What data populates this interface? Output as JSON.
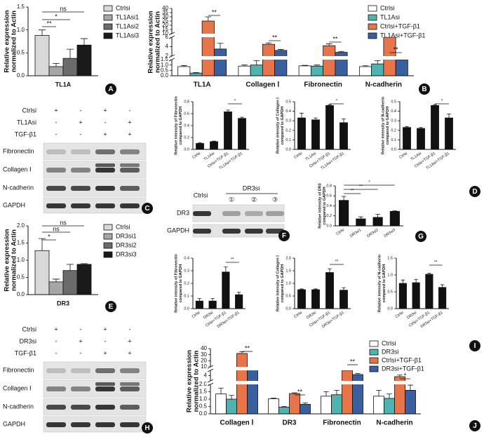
{
  "chart_data": [
    {
      "type": "bar",
      "panel": "A",
      "ylabel": [
        "Relative expression",
        "normalized to Actin"
      ],
      "categories": [
        "TL1A"
      ],
      "legend": true,
      "series": [
        {
          "name": "Ctrlsi",
          "color": "#d9d9d9",
          "values": [
            0.88
          ],
          "errors": [
            0.12
          ]
        },
        {
          "name": "TL1Asi1",
          "color": "#a6a6a6",
          "values": [
            0.2
          ],
          "errors": [
            0.07
          ]
        },
        {
          "name": "TL1Asi2",
          "color": "#6b6b6b",
          "values": [
            0.38
          ],
          "errors": [
            0.2
          ]
        },
        {
          "name": "TL1Asi3",
          "color": "#1a1a1a",
          "values": [
            0.67
          ],
          "errors": [
            0.14
          ]
        }
      ],
      "ylim": [
        0,
        1.5
      ],
      "yticks": [
        {
          "value": 0,
          "label": "0.0"
        },
        0.5,
        {
          "value": 1,
          "label": "1.0"
        },
        1.5
      ],
      "annotations": [
        "**",
        "*",
        "ns"
      ]
    },
    {
      "type": "bar",
      "panel": "B",
      "ylabel": [
        "Relative expression",
        "normalized to Actin"
      ],
      "categories": [
        "TL1A",
        "Collagen Ⅰ",
        "Fibronectin",
        "N-cadherin"
      ],
      "legend": true,
      "series": [
        {
          "name": "Ctrlsi",
          "color": "#ffffff",
          "values": [
            0.85,
            0.9,
            0.92,
            0.85
          ],
          "errors": [
            0.1,
            0.1,
            0.05,
            0.08
          ]
        },
        {
          "name": "TL1Asi",
          "color": "#4fb3b0",
          "values": [
            0.25,
            1.0,
            0.9,
            1.1
          ],
          "errors": [
            0.05,
            0.4,
            0.1,
            0.3
          ]
        },
        {
          "name": "Ctrlsi+TGF-β1",
          "color": "#e8744a",
          "values": [
            25,
            4.5,
            4.2,
            6
          ],
          "errors": [
            5,
            0.3,
            0.4,
            0.5
          ]
        },
        {
          "name": "TL1Asi+TGF-β1",
          "color": "#3a5f9e",
          "values": [
            3.5,
            3.2,
            2.8,
            1.5
          ],
          "errors": [
            1.2,
            0.2,
            0.2,
            0.15
          ]
        }
      ],
      "ylim": [
        0,
        40
      ],
      "y_breaks": [
        [
          1.5,
          2
        ],
        [
          6,
          10
        ]
      ],
      "yticks": [
        {
          "value": 0,
          "label": "0.0"
        },
        0.5,
        {
          "value": 1,
          "label": "1.0"
        },
        1.5,
        2,
        4,
        6,
        10,
        15,
        20,
        25,
        30,
        35,
        40
      ],
      "annotations": [
        "**",
        "**",
        "**",
        "**"
      ]
    },
    {
      "type": "bar",
      "ylabel": [
        "Relative intensity of Fibronectin",
        "compared to GAPDH"
      ],
      "categories": [
        "Ctrlsi",
        "TL1Asi",
        "Ctrlsi+TGF-β1",
        "TL1Asi+TGF-β1"
      ],
      "color": "#111111",
      "values": [
        0.1,
        0.13,
        0.63,
        0.52
      ],
      "errors": [
        0.01,
        0.01,
        0.03,
        0.02
      ],
      "ylim": [
        0,
        0.8
      ],
      "yticks": [
        {
          "value": 0,
          "label": "0.0"
        },
        0.2,
        0.4,
        0.6,
        0.8
      ],
      "annotations": [
        "*"
      ]
    },
    {
      "type": "bar",
      "ylabel": [
        "Relative intensity of Collagen Ⅰ",
        "compared to GAPDH"
      ],
      "categories": [
        "Ctrlsi",
        "TL1Asi",
        "Ctrlsi+TGF-β1",
        "TL1Asi+TGF-β1"
      ],
      "color": "#111111",
      "values": [
        0.33,
        0.31,
        0.46,
        0.28
      ],
      "errors": [
        0.05,
        0.02,
        0.01,
        0.04
      ],
      "ylim": [
        0,
        0.5
      ],
      "yticks": [
        {
          "value": 0,
          "label": "0.0"
        },
        0.1,
        0.2,
        0.3,
        0.4,
        0.5
      ],
      "annotations": [
        "*"
      ]
    },
    {
      "type": "bar",
      "panel": "D",
      "ylabel": [
        "Relative intensity of N-cadherin",
        "compared to GAPDH"
      ],
      "categories": [
        "Ctrlsi",
        "TL1Asi",
        "Ctrlsi+TGF-β1",
        "TL1Asi+TGF-β1"
      ],
      "color": "#111111",
      "values": [
        0.23,
        0.22,
        0.46,
        0.33
      ],
      "errors": [
        0.01,
        0.01,
        0.01,
        0.04
      ],
      "ylim": [
        0,
        0.5
      ],
      "yticks": [
        {
          "value": 0,
          "label": "0.0"
        },
        0.1,
        0.2,
        0.3,
        0.4,
        0.5
      ],
      "annotations": [
        "*"
      ]
    },
    {
      "type": "bar",
      "panel": "G",
      "ylabel": [
        "Relative intensity of DR3",
        "compared to GAPDH"
      ],
      "categories": [
        "Ctrlsi",
        "DR3si1",
        "DR3si2",
        "DR3si3"
      ],
      "color": "#111111",
      "values": [
        0.51,
        0.14,
        0.17,
        0.29
      ],
      "errors": [
        0.08,
        0.04,
        0.06,
        0.01
      ],
      "ylim": [
        0,
        0.8
      ],
      "yticks": [
        {
          "value": 0,
          "label": "0.0"
        },
        0.2,
        0.4,
        0.6,
        0.8
      ],
      "annotations": [
        "**",
        "**",
        "*"
      ]
    },
    {
      "type": "bar",
      "panel": "E",
      "ylabel": [
        "Relative expression",
        "normalized to Actin"
      ],
      "categories": [
        "DR3"
      ],
      "legend": true,
      "series": [
        {
          "name": "Ctrlsi",
          "color": "#d9d9d9",
          "values": [
            1.28
          ],
          "errors": [
            0.35
          ]
        },
        {
          "name": "DR3si1",
          "color": "#a6a6a6",
          "values": [
            0.37
          ],
          "errors": [
            0.08
          ]
        },
        {
          "name": "DR3si2",
          "color": "#6b6b6b",
          "values": [
            0.7
          ],
          "errors": [
            0.18
          ]
        },
        {
          "name": "DR3si3",
          "color": "#1a1a1a",
          "values": [
            0.88
          ],
          "errors": [
            0.02
          ]
        }
      ],
      "ylim": [
        0,
        2
      ],
      "yticks": [
        {
          "value": 0,
          "label": "0.0"
        },
        0.5,
        {
          "value": 1,
          "label": "1.0"
        },
        1.5,
        {
          "value": 2,
          "label": "2.0"
        }
      ],
      "annotations": [
        "*",
        "ns",
        "ns"
      ]
    },
    {
      "type": "bar",
      "ylabel": [
        "Relative intensity of Fibronectin",
        "compared to GAPDH"
      ],
      "categories": [
        "Ctrlsi",
        "DR3si",
        "Ctrlsi+TGF-β1",
        "DR3si+TGF-β1"
      ],
      "color": "#111111",
      "values": [
        0.06,
        0.06,
        0.29,
        0.11
      ],
      "errors": [
        0.02,
        0.02,
        0.04,
        0.02
      ],
      "ylim": [
        0,
        0.4
      ],
      "yticks": [
        {
          "value": 0,
          "label": "0.0"
        },
        0.1,
        0.2,
        0.3,
        0.4
      ],
      "annotations": [
        "**"
      ]
    },
    {
      "type": "bar",
      "ylabel": [
        "Relative intensity of Collagen Ⅰ",
        "compared to GAPDH"
      ],
      "categories": [
        "Ctrlsi",
        "DR3si",
        "Ctrlsi+TGF-β1",
        "DR3si+TGF-β1"
      ],
      "color": "#111111",
      "values": [
        0.75,
        0.75,
        1.43,
        0.73
      ],
      "errors": [
        0.03,
        0.03,
        0.15,
        0.1
      ],
      "ylim": [
        0,
        2
      ],
      "yticks": [
        {
          "value": 0,
          "label": "0.0"
        },
        0.5,
        {
          "value": 1,
          "label": "1.0"
        },
        1.5,
        {
          "value": 2,
          "label": "2.0"
        }
      ],
      "annotations": [
        "**"
      ]
    },
    {
      "type": "bar",
      "panel": "I",
      "ylabel": [
        "Relative intensity of N-cadherin",
        "compared to GAPDH"
      ],
      "categories": [
        "Ctrlsi",
        "DR3si",
        "Ctrlsi+TGF-β1",
        "DR3si+TGF-β1"
      ],
      "color": "#111111",
      "values": [
        0.75,
        0.77,
        1.02,
        0.63
      ],
      "errors": [
        0.1,
        0.1,
        0.03,
        0.08
      ],
      "ylim": [
        0,
        1.5
      ],
      "yticks": [
        {
          "value": 0,
          "label": "0.0"
        },
        0.5,
        {
          "value": 1,
          "label": "1.0"
        },
        1.5
      ],
      "annotations": [
        "**"
      ]
    },
    {
      "type": "bar",
      "panel": "J",
      "ylabel": [
        "Relative expression",
        "normalized to Actin"
      ],
      "categories": [
        "Collagen Ⅰ",
        "DR3",
        "Fibronectin",
        "N-cadherin"
      ],
      "legend": true,
      "series": [
        {
          "name": "Ctrlsi",
          "color": "#ffffff",
          "values": [
            1.35,
            1.02,
            1.2,
            1.2
          ],
          "errors": [
            0.4,
            0.05,
            0.3,
            0.4
          ]
        },
        {
          "name": "DR3si",
          "color": "#4fb3b0",
          "values": [
            1.0,
            0.45,
            1.3,
            1.05
          ],
          "errors": [
            0.25,
            0.05,
            0.3,
            0.3
          ]
        },
        {
          "name": "Ctrlsi+TGF-β1",
          "color": "#e8744a",
          "values": [
            32,
            1.38,
            5,
            3.8
          ],
          "errors": [
            3,
            0.05,
            0.3,
            0.3
          ]
        },
        {
          "name": "DR3si+TGF-β1",
          "color": "#3a5f9e",
          "values": [
            6.2,
            0.65,
            4.2,
            1.6
          ],
          "errors": [
            0.4,
            0.1,
            0.2,
            0.35
          ]
        }
      ],
      "ylim": [
        0,
        40
      ],
      "y_breaks": [
        [
          2,
          3
        ],
        [
          5,
          10
        ]
      ],
      "yticks": [
        {
          "value": 0,
          "label": "0.0"
        },
        0.5,
        {
          "value": 1,
          "label": "1.0"
        },
        1.5,
        {
          "value": 2,
          "label": "2.0"
        },
        4,
        10,
        20,
        30,
        40
      ],
      "annotations": [
        "**",
        "**",
        "**",
        "*"
      ]
    }
  ],
  "blots": [
    {
      "panel": "C",
      "conditions": [
        {
          "label": "Ctrlsi",
          "signs": [
            "+",
            "-",
            "+",
            "-"
          ]
        },
        {
          "label": "TL1Asi",
          "signs": [
            "-",
            "+",
            "-",
            "+"
          ]
        },
        {
          "label": "TGF-β1",
          "signs": [
            "-",
            "-",
            "+",
            "+"
          ]
        }
      ],
      "bands": [
        "Fibronectin",
        "Collagen Ⅰ",
        "N-cadherin",
        "GAPDH"
      ]
    },
    {
      "panel": "F",
      "groups": [
        "Ctrlsi",
        "DR3si"
      ],
      "lanes": [
        "①",
        "②",
        "③"
      ],
      "bands": [
        "DR3",
        "GAPDH"
      ]
    },
    {
      "panel": "H",
      "conditions": [
        {
          "label": "Ctrlsi",
          "signs": [
            "+",
            "-",
            "+",
            "-"
          ]
        },
        {
          "label": "DR3si",
          "signs": [
            "-",
            "+",
            "-",
            "+"
          ]
        },
        {
          "label": "TGF-β1",
          "signs": [
            "-",
            "-",
            "+",
            "+"
          ]
        }
      ],
      "bands": [
        "Fibronectin",
        "Collagen Ⅰ",
        "N-cadherin",
        "GAPDH"
      ]
    }
  ]
}
